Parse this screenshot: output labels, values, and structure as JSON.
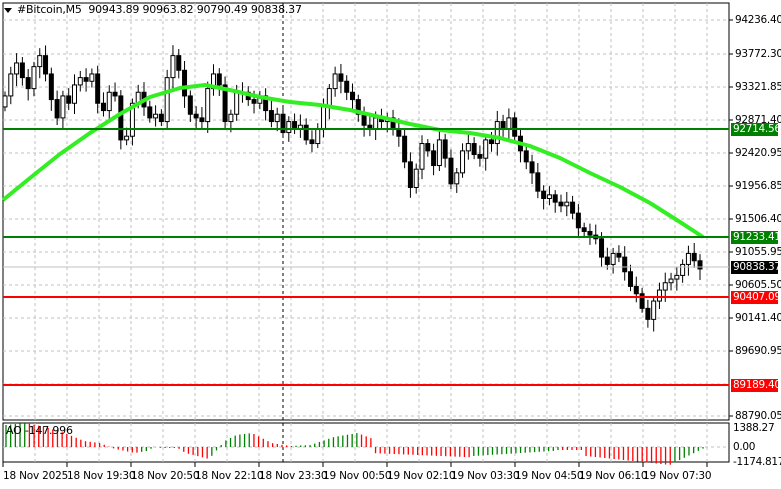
{
  "header": {
    "symbol": "#Bitcoin,M5",
    "ohlc": "90943.89 90963.82 90790.49 90838.37",
    "open": "90943.89",
    "high": "90963.82",
    "low": "90790.49",
    "close": "90838.37"
  },
  "indicator": {
    "name": "AO",
    "value": "-147.996",
    "label": "AO -147.996",
    "scale": [
      "1388.27",
      "0.00",
      "-1174.817"
    ]
  },
  "price_axis": [
    "94236.40",
    "93772.30",
    "93321.85",
    "92871.40",
    "92420.95",
    "91956.85",
    "91506.40",
    "91055.95",
    "90605.50",
    "90141.40",
    "89690.95",
    "88790.05"
  ],
  "levels": [
    {
      "name": "resistance-upper",
      "value": "92714.56",
      "color": "#008000"
    },
    {
      "name": "resistance-lower",
      "value": "91233.41",
      "color": "#008000"
    },
    {
      "name": "current-price",
      "value": "90838.37",
      "color": "#000000"
    },
    {
      "name": "support-upper",
      "value": "90407.09",
      "color": "#ff0000"
    },
    {
      "name": "support-lower",
      "value": "89189.40",
      "color": "#ff0000"
    }
  ],
  "time_axis": [
    "18 Nov 2025",
    "18 Nov 19:30",
    "18 Nov 20:50",
    "18 Nov 22:10",
    "18 Nov 23:30",
    "19 Nov 00:50",
    "19 Nov 02:10",
    "19 Nov 03:30",
    "19 Nov 04:50",
    "19 Nov 06:10",
    "19 Nov 07:30"
  ],
  "colors": {
    "ma": "#33ee22",
    "bull_bar": "#008000",
    "bear_bar": "#ff0000",
    "support": "#ff0000",
    "resistance": "#008000",
    "grid": "#c0c0c0"
  },
  "chart_data": {
    "type": "candlestick",
    "title": "#Bitcoin,M5",
    "xlabel": "",
    "ylabel": "",
    "ylim": [
      88790.05,
      94460
    ],
    "grid": true,
    "categories": [
      "18 Nov 2025",
      "18 Nov 19:30",
      "18 Nov 20:50",
      "18 Nov 22:10",
      "18 Nov 23:30",
      "19 Nov 00:50",
      "19 Nov 02:10",
      "19 Nov 03:30",
      "19 Nov 04:50",
      "19 Nov 06:10",
      "19 Nov 07:30"
    ],
    "series": [
      {
        "name": "Price (approx. close at each time label)",
        "values": [
          93300,
          93550,
          93350,
          92900,
          92600,
          92950,
          92250,
          92500,
          92000,
          91500,
          90838.37
        ]
      },
      {
        "name": "Moving Average (green)",
        "values": [
          91800,
          92850,
          93300,
          93150,
          93000,
          92850,
          92750,
          92700,
          92400,
          91950,
          91450
        ]
      }
    ],
    "horizontal_lines": [
      {
        "value": 92714.56,
        "color": "green"
      },
      {
        "value": 91233.41,
        "color": "green"
      },
      {
        "value": 90407.09,
        "color": "red"
      },
      {
        "value": 89189.4,
        "color": "red"
      }
    ],
    "last_price": 90838.37,
    "ohlc_last": {
      "open": 90943.89,
      "high": 90963.82,
      "low": 90790.49,
      "close": 90838.37
    },
    "indicator": {
      "name": "AO",
      "value": -147.996,
      "ylim": [
        -1174.817,
        1388.27
      ]
    }
  }
}
